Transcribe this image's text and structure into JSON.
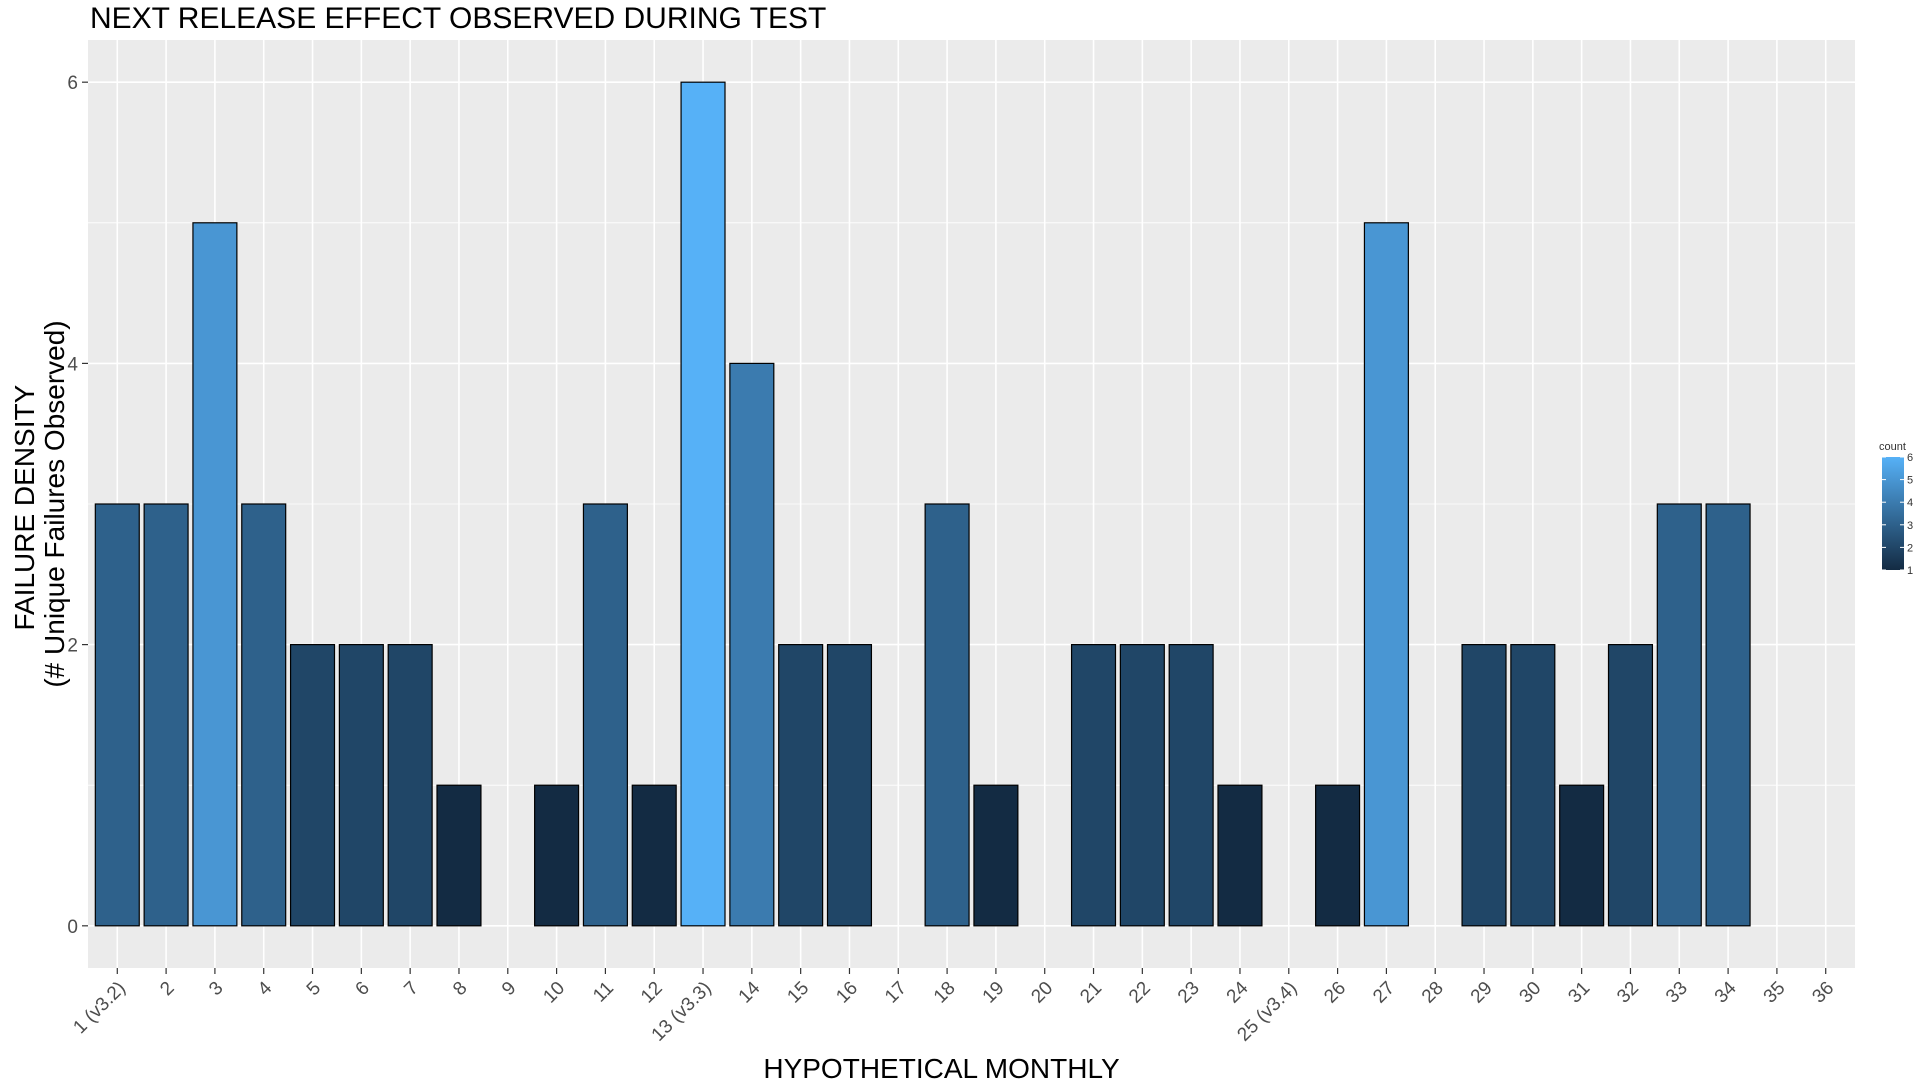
{
  "chart_data": {
    "type": "bar",
    "title": "NEXT RELEASE EFFECT OBSERVED DURING TEST",
    "xlabel": "HYPOTHETICAL MONTHLY",
    "ylabel_lines": [
      "FAILURE DENSITY",
      "(# Unique Failures Observed)"
    ],
    "categories": [
      "1 (v3.2)",
      "2",
      "3",
      "4",
      "5",
      "6",
      "7",
      "8",
      "9",
      "10",
      "11",
      "12",
      "13 (v3.3)",
      "14",
      "15",
      "16",
      "17",
      "18",
      "19",
      "20",
      "21",
      "22",
      "23",
      "24",
      "25 (v3.4)",
      "26",
      "27",
      "28",
      "29",
      "30",
      "31",
      "32",
      "33",
      "34",
      "35",
      "36"
    ],
    "values": [
      3,
      3,
      5,
      3,
      2,
      2,
      2,
      1,
      0,
      1,
      3,
      1,
      6,
      4,
      2,
      2,
      0,
      3,
      1,
      0,
      2,
      2,
      2,
      1,
      0,
      1,
      5,
      0,
      2,
      2,
      1,
      2,
      3,
      3,
      0,
      0
    ],
    "ylim": [
      -0.3,
      6.3
    ],
    "yticks": [
      0,
      2,
      4,
      6
    ],
    "grid": true,
    "legend": {
      "title": "count",
      "position": "right",
      "ticks": [
        1,
        2,
        3,
        4,
        5,
        6
      ],
      "low_color": "#132B43",
      "high_color": "#56B1F7"
    },
    "colors": {
      "panel_background": "#EBEBEB",
      "grid_major": "#FFFFFF",
      "bar_outline": "#000000"
    }
  }
}
